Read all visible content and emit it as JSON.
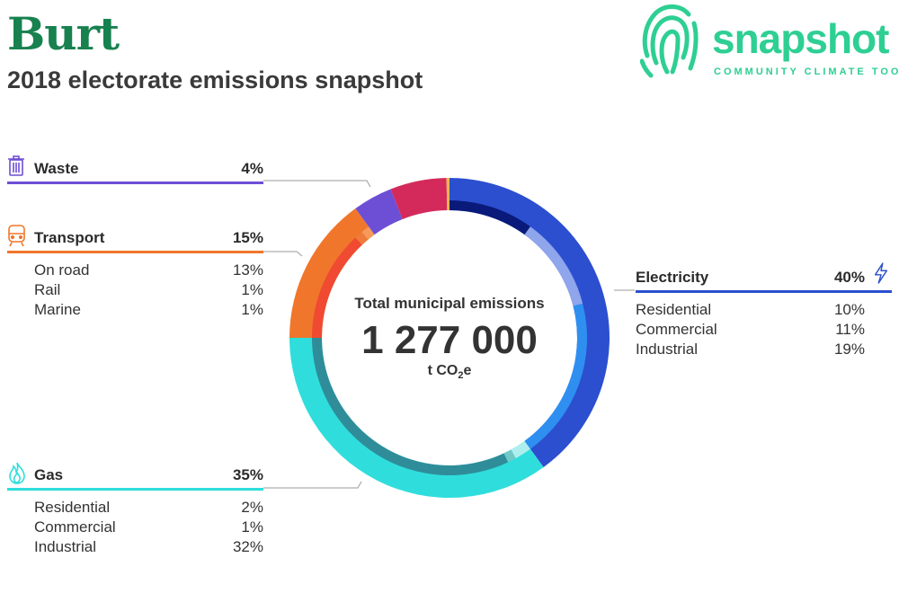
{
  "header": {
    "title": "Burt",
    "subtitle": "2018 electorate emissions snapshot"
  },
  "logo": {
    "wordmark": "snapshot",
    "tagline": "COMMUNITY CLIMATE TOOL",
    "color": "#2ecf93"
  },
  "total": {
    "label": "Total municipal emissions",
    "value": "1 277 000",
    "unit_prefix": "t CO",
    "unit_sub": "2",
    "unit_suffix": "e"
  },
  "categories": {
    "waste": {
      "label": "Waste",
      "pct": "4%",
      "color": "#6d4fd6",
      "icon": "trash-icon"
    },
    "transport": {
      "label": "Transport",
      "pct": "15%",
      "color": "#f0762b",
      "icon": "train-icon",
      "items": [
        {
          "label": "On road",
          "pct": "13%"
        },
        {
          "label": "Rail",
          "pct": "1%"
        },
        {
          "label": "Marine",
          "pct": "1%"
        }
      ]
    },
    "gas": {
      "label": "Gas",
      "pct": "35%",
      "color": "#2fdedc",
      "icon": "flame-icon",
      "items": [
        {
          "label": "Residential",
          "pct": "2%"
        },
        {
          "label": "Commercial",
          "pct": "1%"
        },
        {
          "label": "Industrial",
          "pct": "32%"
        }
      ]
    },
    "electricity": {
      "label": "Electricity",
      "pct": "40%",
      "color": "#2b4fcf",
      "icon": "lightning-icon",
      "items": [
        {
          "label": "Residential",
          "pct": "10%"
        },
        {
          "label": "Commercial",
          "pct": "11%"
        },
        {
          "label": "Industrial",
          "pct": "19%"
        }
      ]
    }
  },
  "chart_data": {
    "type": "pie",
    "outer_ring": [
      {
        "name": "Electricity",
        "value": 40,
        "color": "#2b4fcf"
      },
      {
        "name": "Gas",
        "value": 35,
        "color": "#2fdedc"
      },
      {
        "name": "Transport",
        "value": 15,
        "color": "#f0762b"
      },
      {
        "name": "Waste",
        "value": 4,
        "color": "#6d4fd6"
      },
      {
        "name": "",
        "value": 5.7,
        "color": "#d42a5b"
      },
      {
        "name": "",
        "value": 0.3,
        "color": "#f2b84b"
      }
    ],
    "inner_ring": [
      {
        "name": "Electricity Residential",
        "value": 10,
        "color": "#0a1a7a"
      },
      {
        "name": "Electricity Commercial",
        "value": 11,
        "color": "#8fa5ec"
      },
      {
        "name": "Electricity Industrial",
        "value": 19,
        "color": "#2e8ff0"
      },
      {
        "name": "Gas Residential",
        "value": 2,
        "color": "#aeeeee"
      },
      {
        "name": "Gas Commercial",
        "value": 1,
        "color": "#6fc9c9"
      },
      {
        "name": "Gas Industrial",
        "value": 32,
        "color": "#2f8d99"
      },
      {
        "name": "Transport On road",
        "value": 13,
        "color": "#f04a32"
      },
      {
        "name": "Transport Rail",
        "value": 1,
        "color": "#f07a3a"
      },
      {
        "name": "Transport Marine",
        "value": 1,
        "color": "#f59a5a"
      }
    ]
  }
}
